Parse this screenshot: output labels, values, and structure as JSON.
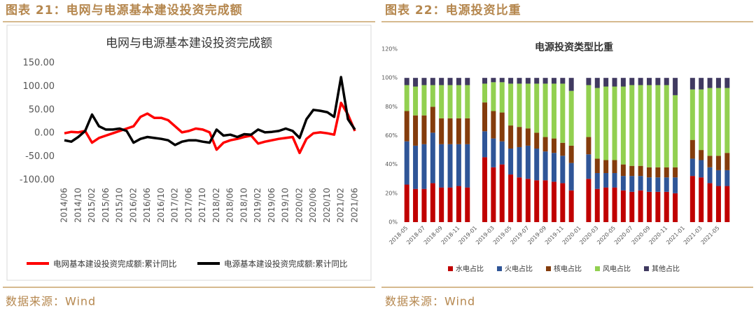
{
  "headings": [
    "图表 21：电网与电源基本建设投资完成额",
    "图表 22：电源投资比重"
  ],
  "sources": [
    "数据来源：Wind",
    "数据来源：Wind"
  ],
  "chart_data": [
    {
      "type": "line",
      "title": "电网与电源基本建设投资完成额",
      "categories": [
        "2014/06",
        null,
        "2014/10",
        null,
        "2015/02",
        null,
        "2015/06",
        null,
        "2015/10",
        null,
        "2016/02",
        null,
        "2016/06",
        null,
        "2016/10",
        null,
        "2017/02",
        null,
        "2017/06",
        null,
        "2017/10",
        null,
        "2018/02",
        null,
        "2018/06",
        null,
        "2018/10",
        null,
        "2019/02",
        null,
        "2019/06",
        null,
        "2019/10",
        null,
        "2020/02",
        null,
        "2020/06",
        null,
        "2020/10",
        null,
        "2021/02",
        null,
        "2021/06"
      ],
      "series": [
        {
          "name": "电网基本建设投资完成额:累计同比",
          "color": "#ff0000",
          "values": [
            0,
            3,
            2,
            5,
            -20,
            -10,
            -5,
            0,
            5,
            10,
            15,
            35,
            42,
            33,
            33,
            28,
            15,
            2,
            5,
            10,
            8,
            2,
            -35,
            -20,
            -15,
            -12,
            -8,
            -5,
            -22,
            -18,
            -15,
            -12,
            -10,
            -8,
            -42,
            -12,
            0,
            2,
            0,
            -3,
            65,
            40,
            5
          ]
        },
        {
          "name": "电源基本建设投资完成额:累计同比",
          "color": "#000000",
          "values": [
            -15,
            -18,
            -8,
            5,
            40,
            15,
            8,
            8,
            10,
            5,
            -20,
            -12,
            -8,
            -10,
            -12,
            -15,
            -25,
            -18,
            -15,
            -15,
            -18,
            -20,
            8,
            -5,
            -3,
            -8,
            -2,
            -3,
            8,
            2,
            3,
            5,
            10,
            5,
            -10,
            30,
            50,
            48,
            45,
            35,
            120,
            30,
            8
          ]
        }
      ],
      "ylim": [
        -100,
        150
      ],
      "yticks": [
        {
          "value": -100,
          "label": "-100.00"
        },
        {
          "value": -50,
          "label": "-50.00"
        },
        {
          "value": 0,
          "label": "0.00"
        },
        {
          "value": 50,
          "label": "50.00"
        },
        {
          "value": 100,
          "label": "100.00"
        },
        {
          "value": 150,
          "label": "150.00"
        }
      ],
      "grid": false,
      "legend": "bottom"
    },
    {
      "type": "stacked_bar",
      "title": "电源投资类型比重",
      "categories": [
        "2018-05",
        null,
        "2018-07",
        null,
        "2018-09",
        null,
        "2018-11",
        null,
        "2019-01",
        null,
        "2019-03",
        null,
        "2019-05",
        null,
        "2019-07",
        null,
        "2019-09",
        null,
        "2019-11",
        null,
        "2020-01",
        null,
        "2020-03",
        null,
        "2020-05",
        null,
        "2020-07",
        null,
        "2020-09",
        null,
        "2020-11",
        null,
        "2021-01",
        null,
        "2021-03",
        null,
        "2021-05",
        null
      ],
      "series": [
        {
          "name": "水电占比",
          "color": "#c00000",
          "values": [
            26,
            23,
            23,
            27,
            24,
            24,
            25,
            24,
            null,
            45,
            38,
            40,
            33,
            31,
            30,
            29,
            29,
            28,
            27,
            22,
            null,
            30,
            23,
            24,
            24,
            22,
            21,
            22,
            21,
            21,
            21,
            20,
            null,
            32,
            31,
            27,
            25,
            25
          ]
        },
        {
          "name": "火电占比",
          "color": "#2f5597",
          "values": [
            30,
            30,
            31,
            35,
            30,
            30,
            29,
            30,
            null,
            18,
            20,
            16,
            18,
            21,
            23,
            22,
            20,
            20,
            19,
            19,
            null,
            17,
            11,
            10,
            10,
            10,
            11,
            10,
            10,
            10,
            10,
            11,
            null,
            12,
            12,
            11,
            11,
            11
          ]
        },
        {
          "name": "核电占比",
          "color": "#843c0c",
          "values": [
            21,
            21,
            20,
            18,
            18,
            18,
            18,
            18,
            null,
            20,
            19,
            20,
            16,
            14,
            12,
            11,
            10,
            10,
            9,
            12,
            null,
            12,
            10,
            9,
            9,
            8,
            7,
            7,
            7,
            7,
            7,
            7,
            null,
            13,
            7,
            8,
            10,
            12
          ]
        },
        {
          "name": "风电占比",
          "color": "#92d050",
          "values": [
            18,
            20,
            21,
            15,
            23,
            23,
            23,
            23,
            null,
            13,
            20,
            21,
            29,
            30,
            31,
            34,
            37,
            38,
            41,
            38,
            null,
            36,
            49,
            51,
            51,
            54,
            56,
            56,
            57,
            57,
            57,
            50,
            null,
            35,
            42,
            47,
            47,
            45
          ]
        },
        {
          "name": "其他占比",
          "color": "#403a60",
          "values": [
            5,
            6,
            5,
            5,
            5,
            5,
            5,
            5,
            null,
            4,
            3,
            3,
            4,
            4,
            4,
            4,
            4,
            4,
            4,
            9,
            null,
            5,
            7,
            6,
            6,
            6,
            5,
            5,
            5,
            5,
            5,
            12,
            null,
            8,
            8,
            7,
            7,
            7
          ]
        }
      ],
      "ylim": [
        0,
        120
      ],
      "yticks": [
        {
          "value": 0,
          "label": "0%"
        },
        {
          "value": 20,
          "label": "20%"
        },
        {
          "value": 40,
          "label": "40%"
        },
        {
          "value": 60,
          "label": "60%"
        },
        {
          "value": 80,
          "label": "80%"
        },
        {
          "value": 100,
          "label": "100%"
        },
        {
          "value": 120,
          "label": "120%"
        }
      ],
      "grid": false,
      "legend": "bottom"
    }
  ]
}
